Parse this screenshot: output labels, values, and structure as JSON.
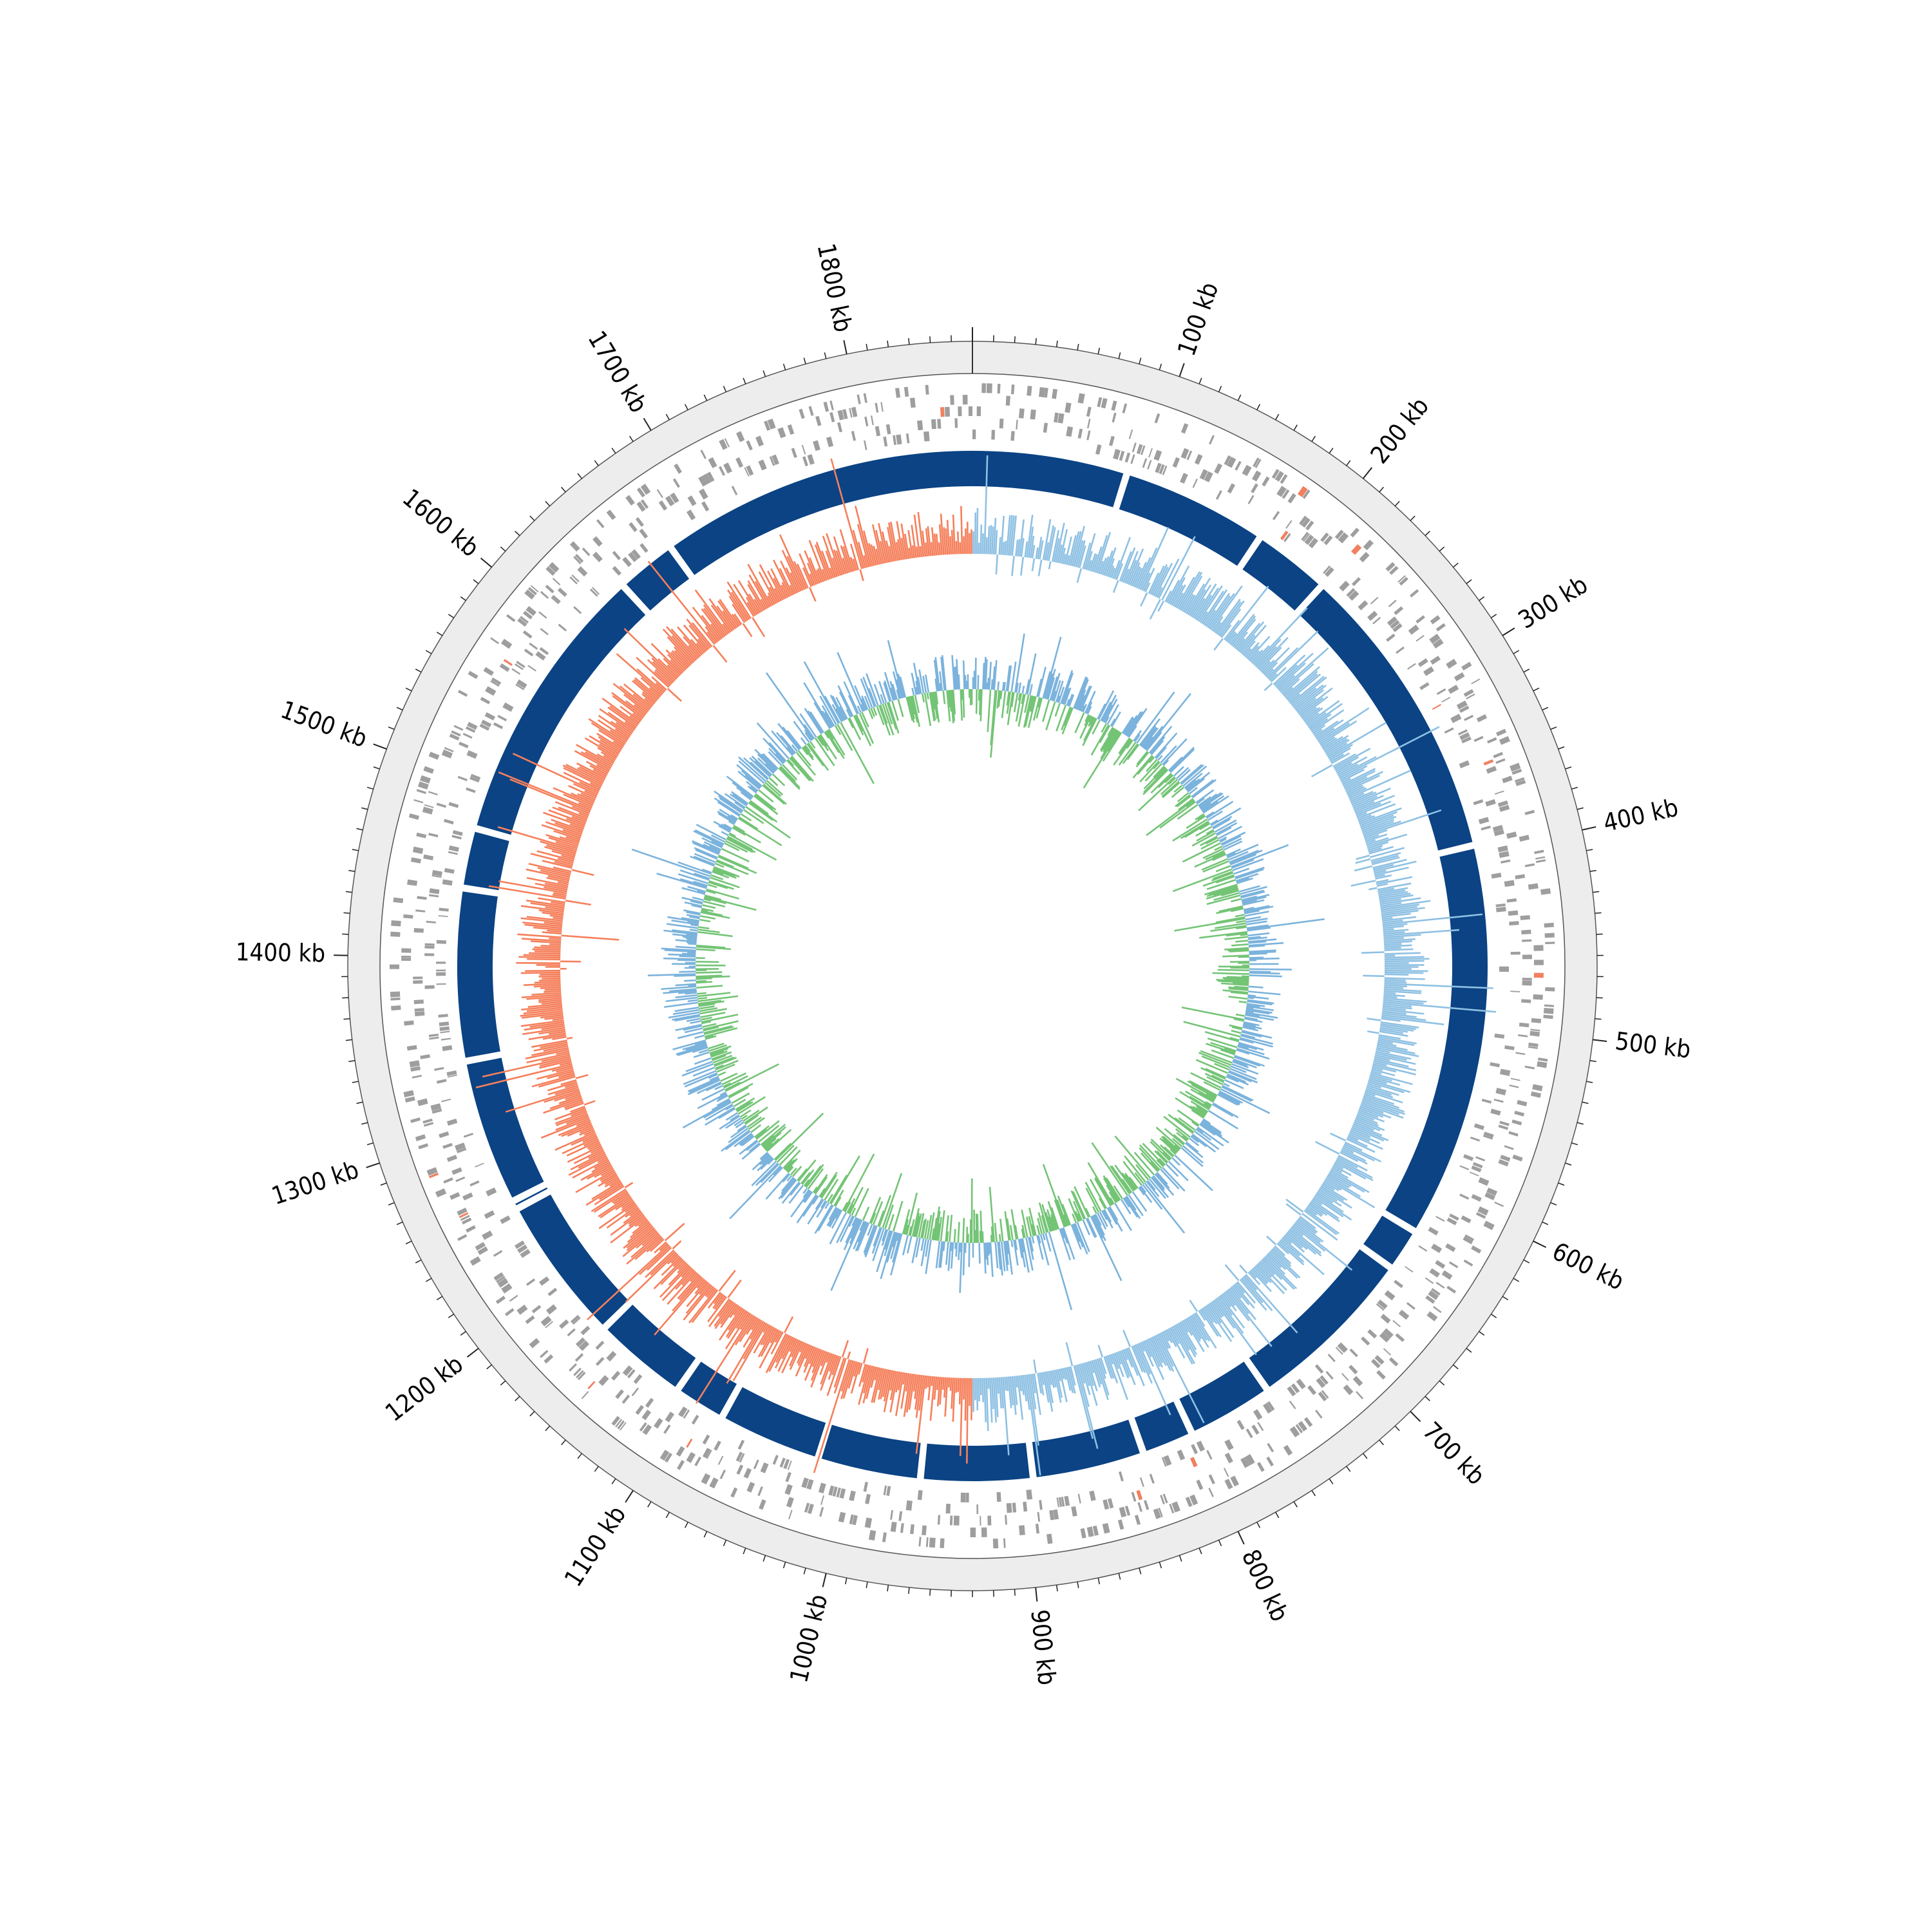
{
  "genome": {
    "length_kb": 1860,
    "axis_unit": "kb",
    "tick_labels": [
      "100 kb",
      "200 kb",
      "300 kb",
      "400 kb",
      "500 kb",
      "600 kb",
      "700 kb",
      "800 kb",
      "900 kb",
      "1000 kb",
      "1100 kb",
      "1200 kb",
      "1300 kb",
      "1400 kb",
      "1500 kb",
      "1600 kb",
      "1700 kb",
      "1800 kb"
    ],
    "major_tick_step_kb": 100,
    "minor_tick_step_kb": 10
  },
  "tracks": {
    "backbone": {
      "color": "#ededed",
      "outline": "#555555"
    },
    "gene_features": {
      "color": "#9e9e9e",
      "highlight_color": "#f08060"
    },
    "contigs": {
      "color": "#0b4384",
      "gaps_kb": [
        90,
        175,
        220,
        395,
        625,
        650,
        750,
        800,
        830,
        895,
        960,
        1020,
        1080,
        1110,
        1165,
        1250,
        1255,
        1340,
        1440,
        1475,
        1640,
        1675
      ]
    },
    "gc_skew": {
      "positive_color": "#8fc1e3",
      "negative_color": "#f5805c",
      "positive_range_kb": [
        0,
        930
      ],
      "negative_range_kb": [
        930,
        1860
      ]
    },
    "gc_content": {
      "above_color": "#7bb3dc",
      "below_color": "#74c476"
    }
  }
}
